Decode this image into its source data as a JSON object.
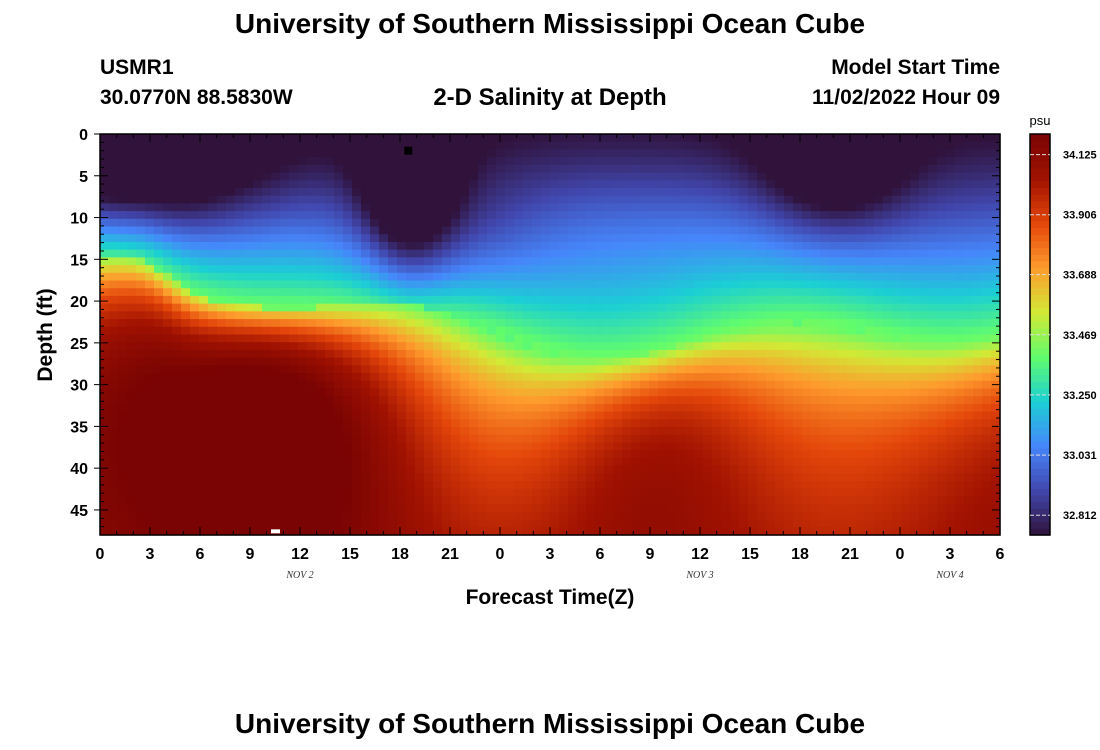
{
  "header": {
    "title": "University of Southern Mississippi Ocean Cube",
    "station_id": "USMR1",
    "station_coords": "30.0770N  88.5830W",
    "subtitle": "2-D Salinity at Depth",
    "model_start_label": "Model Start Time",
    "model_start_value": "11/02/2022 Hour 09"
  },
  "footer": {
    "title": "University of Southern Mississippi Ocean Cube"
  },
  "chart_data": {
    "type": "heatmap",
    "title": "2-D Salinity at Depth",
    "xlabel": "Forecast Time(Z)",
    "ylabel": "Depth (ft)",
    "x_tick_labels": [
      "0",
      "3",
      "6",
      "9",
      "12",
      "15",
      "18",
      "21",
      "0",
      "3",
      "6",
      "9",
      "12",
      "15",
      "18",
      "21",
      "0",
      "3",
      "6"
    ],
    "x_range_hours": [
      0,
      54
    ],
    "date_labels": [
      {
        "label": "NOV 2",
        "hour": 12
      },
      {
        "label": "NOV 3",
        "hour": 36
      },
      {
        "label": "NOV 4",
        "hour": 51
      }
    ],
    "y_ticks": [
      0,
      5,
      10,
      15,
      20,
      25,
      30,
      35,
      40,
      45
    ],
    "ylim": [
      0,
      48
    ],
    "y_inverted": true,
    "colorbar": {
      "unit": "psu",
      "ticks": [
        34.125,
        33.906,
        33.688,
        33.469,
        33.25,
        33.031,
        32.812
      ],
      "range": [
        32.74,
        34.2
      ]
    },
    "colors": {
      "scale": [
        "#30123b",
        "#4146ac",
        "#4686fb",
        "#1bcfd4",
        "#61fc6c",
        "#d2e935",
        "#fe9b2d",
        "#e4460a",
        "#a11201",
        "#7a0403"
      ]
    },
    "markers": [
      {
        "shape": "square",
        "color": "#000000",
        "hour": 18.5,
        "depth": 2
      },
      {
        "shape": "square",
        "color": "#ffffff",
        "hour": 10.5,
        "depth": 47.8
      }
    ]
  }
}
